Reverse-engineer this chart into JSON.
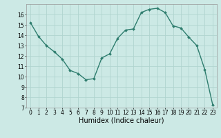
{
  "x": [
    0,
    1,
    2,
    3,
    4,
    5,
    6,
    7,
    8,
    9,
    10,
    11,
    12,
    13,
    14,
    15,
    16,
    17,
    18,
    19,
    20,
    21,
    22,
    23
  ],
  "y": [
    15.2,
    13.9,
    13.0,
    12.4,
    11.7,
    10.6,
    10.3,
    9.7,
    9.8,
    11.8,
    12.2,
    13.7,
    14.5,
    14.6,
    16.2,
    16.5,
    16.6,
    16.2,
    14.9,
    14.7,
    13.8,
    13.0,
    10.7,
    7.3
  ],
  "xlabel": "Humidex (Indice chaleur)",
  "line_color": "#2e7d6e",
  "marker_color": "#2e7d6e",
  "bg_color": "#cce9e5",
  "grid_color": "#b0d4cf",
  "ylim": [
    7,
    17
  ],
  "xlim": [
    -0.5,
    23.5
  ],
  "yticks": [
    7,
    8,
    9,
    10,
    11,
    12,
    13,
    14,
    15,
    16
  ],
  "xticks": [
    0,
    1,
    2,
    3,
    4,
    5,
    6,
    7,
    8,
    9,
    10,
    11,
    12,
    13,
    14,
    15,
    16,
    17,
    18,
    19,
    20,
    21,
    22,
    23
  ],
  "figsize": [
    3.2,
    2.0
  ],
  "dpi": 100,
  "linewidth": 1.0,
  "markersize": 2.0,
  "xlabel_fontsize": 7,
  "tick_fontsize": 5.5
}
